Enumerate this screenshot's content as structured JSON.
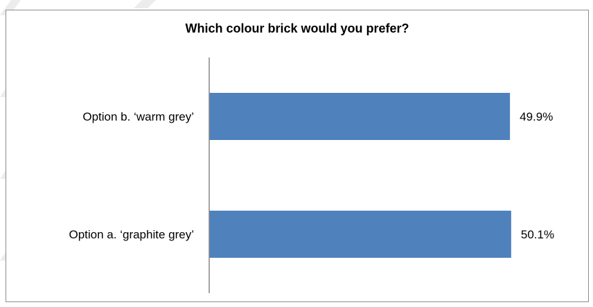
{
  "chart_data": {
    "type": "bar",
    "orientation": "horizontal",
    "title": "Which colour brick would you prefer?",
    "categories": [
      "Option b. ‘warm grey’",
      "Option a. ‘graphite grey’"
    ],
    "values": [
      49.9,
      50.1
    ],
    "value_labels": [
      "49.9%",
      "50.1%"
    ],
    "xlabel": "",
    "ylabel": "",
    "xlim": [
      0,
      55
    ],
    "grid": false,
    "legend": "none",
    "bar_color": "#4f81bd",
    "axis_color": "#868686"
  }
}
